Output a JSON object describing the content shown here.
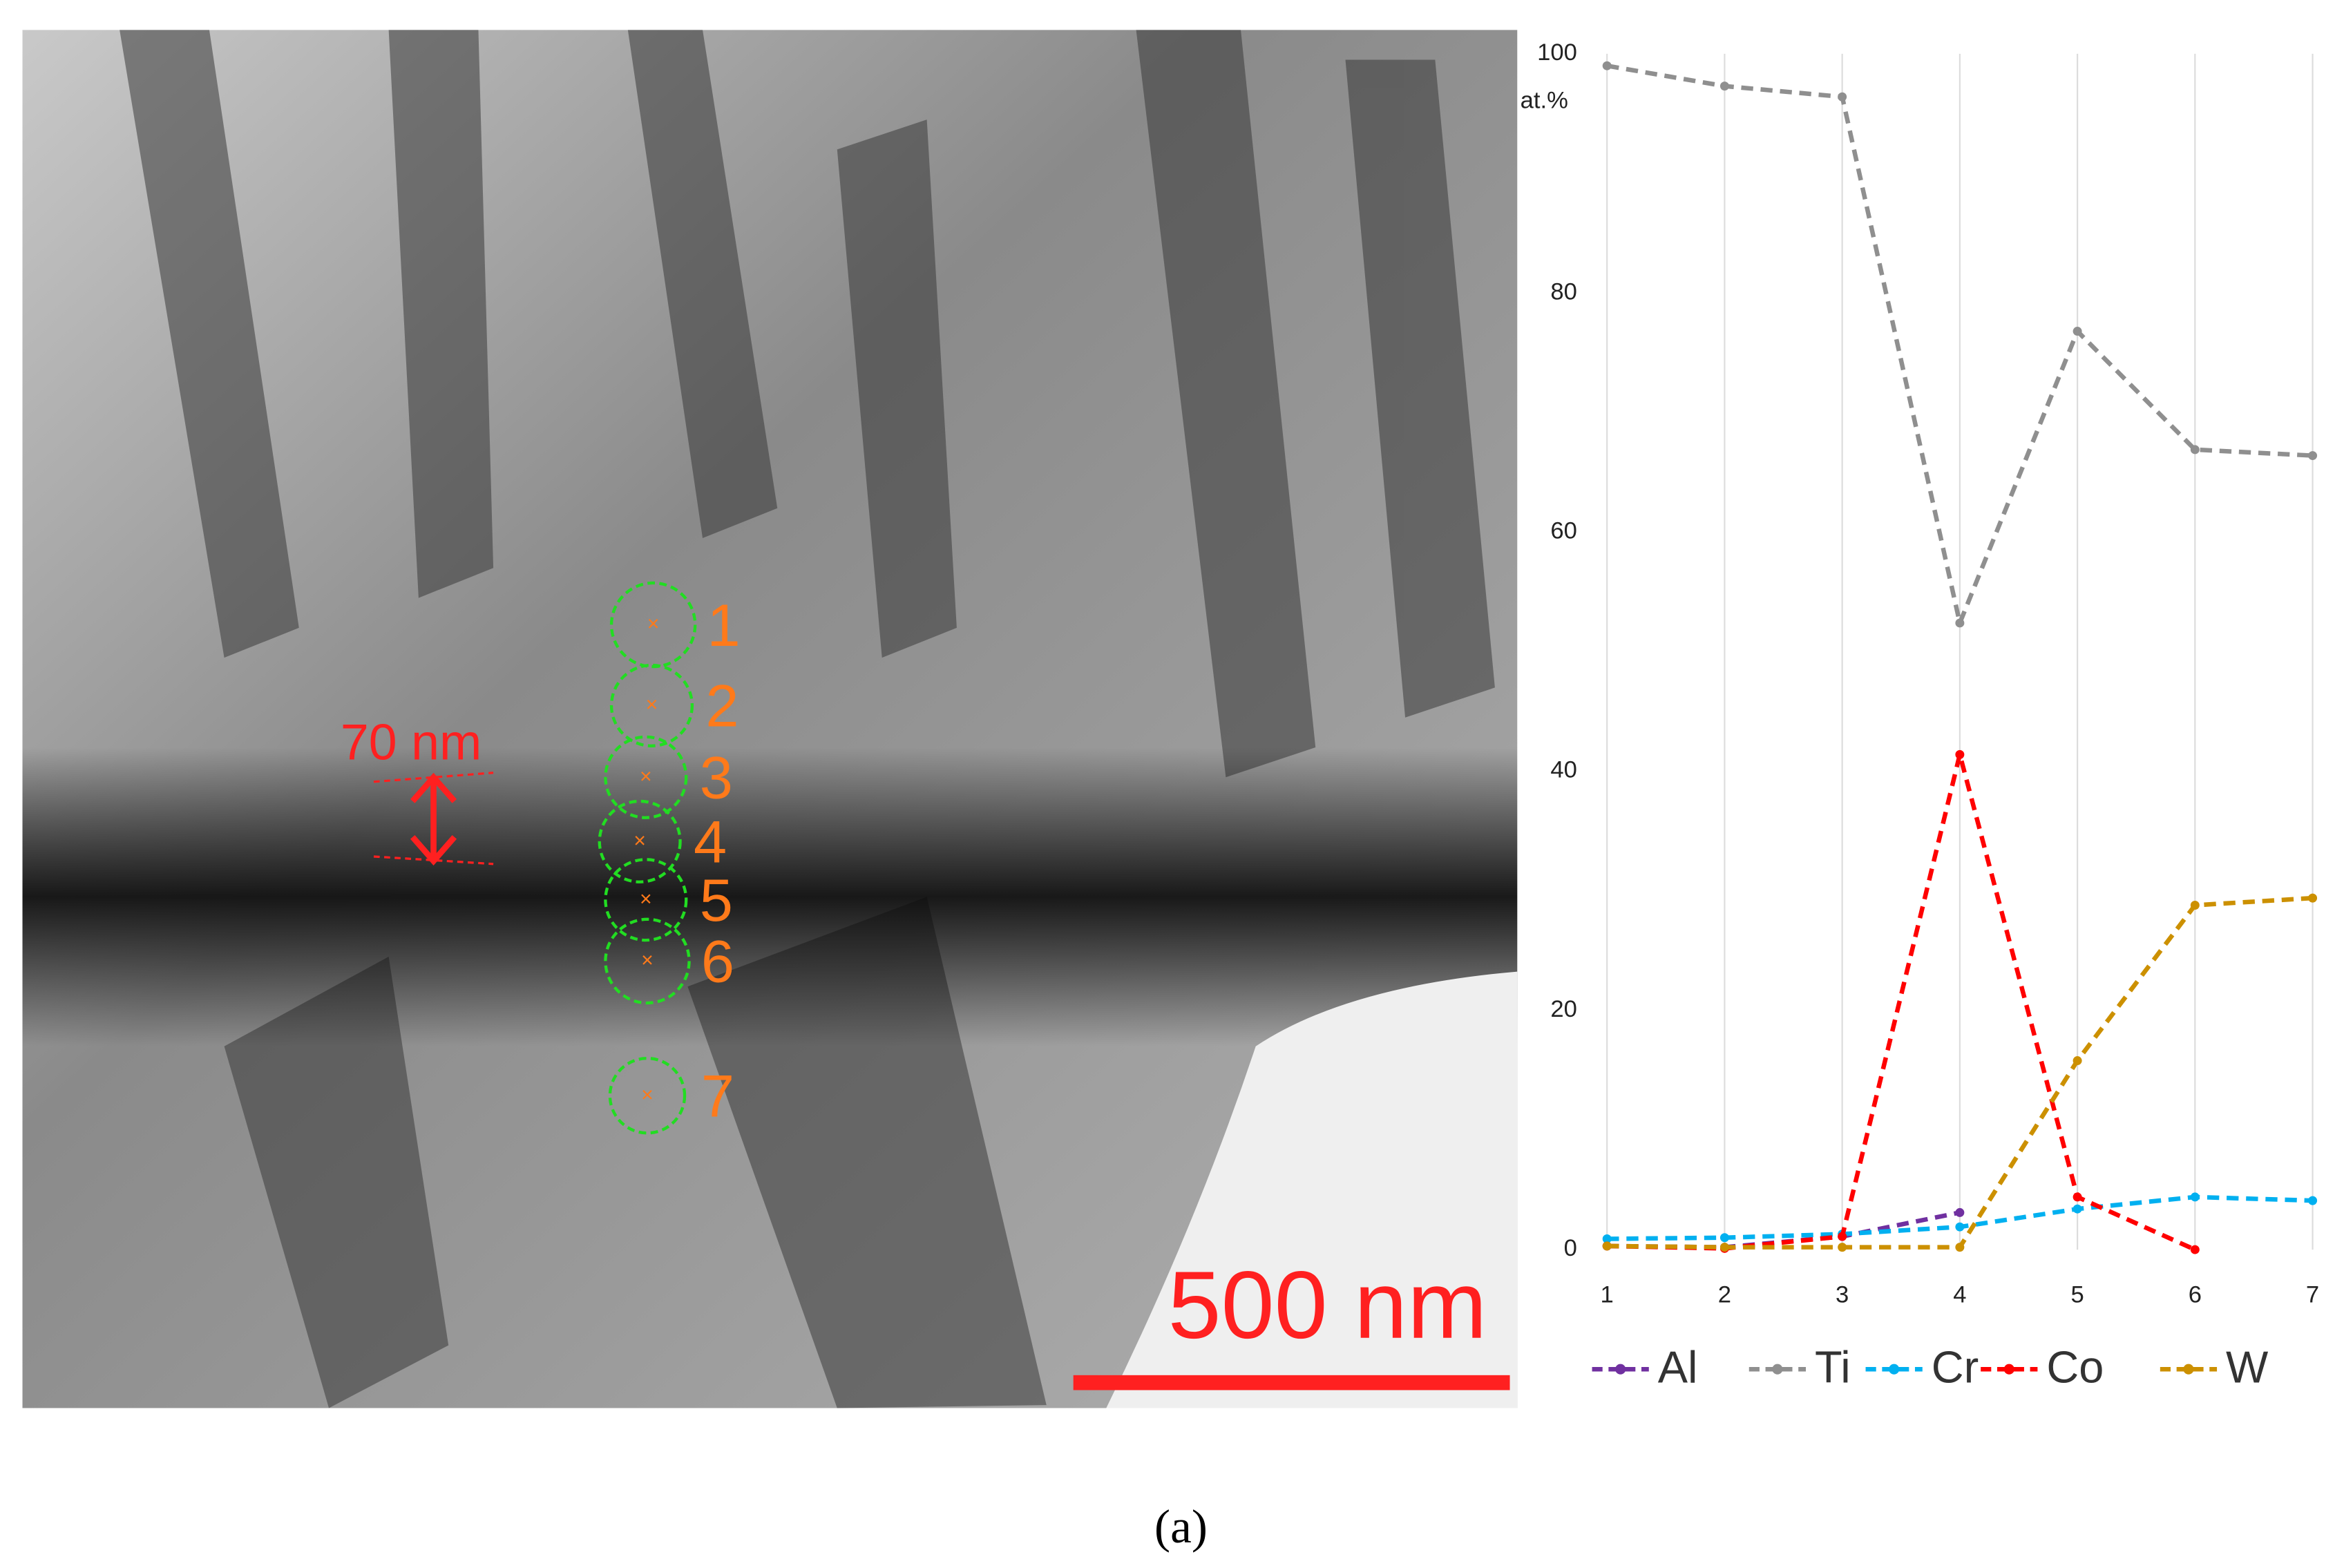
{
  "chart_data": {
    "type": "line",
    "y_label": "at.%",
    "x": [
      1,
      2,
      3,
      4,
      5,
      6,
      7
    ],
    "xlim": [
      1,
      7
    ],
    "xticks": [
      1,
      2,
      3,
      4,
      5,
      6,
      7
    ],
    "ylim": [
      0,
      100
    ],
    "yticks": [
      0,
      20,
      40,
      60,
      80,
      100
    ],
    "grid": "x",
    "legend": "bottom",
    "series": [
      {
        "name": "Al",
        "color": "#7030a0",
        "values": [
          0.3,
          0.2,
          1.1,
          3.1,
          null,
          null,
          null
        ]
      },
      {
        "name": "Ti",
        "color": "#8f8f8f",
        "values": [
          99,
          97.3,
          96.4,
          52.4,
          76.8,
          66.9,
          66.4
        ]
      },
      {
        "name": "Cr",
        "color": "#00b0f0",
        "values": [
          0.9,
          1.0,
          1.3,
          1.9,
          3.4,
          4.4,
          4.1
        ]
      },
      {
        "name": "Co",
        "color": "#ff0000",
        "values": [
          0.3,
          0.1,
          1.1,
          41.4,
          4.4,
          0,
          null
        ]
      },
      {
        "name": "W",
        "color": "#cc9000",
        "values": [
          0.3,
          0.2,
          0.2,
          0.2,
          15.8,
          28.8,
          29.4
        ]
      }
    ]
  },
  "image": {
    "points": [
      "1",
      "2",
      "3",
      "4",
      "5",
      "6",
      "7"
    ],
    "thickness": "70 nm",
    "scale_bar": "500 nm"
  },
  "caption": "(a)"
}
